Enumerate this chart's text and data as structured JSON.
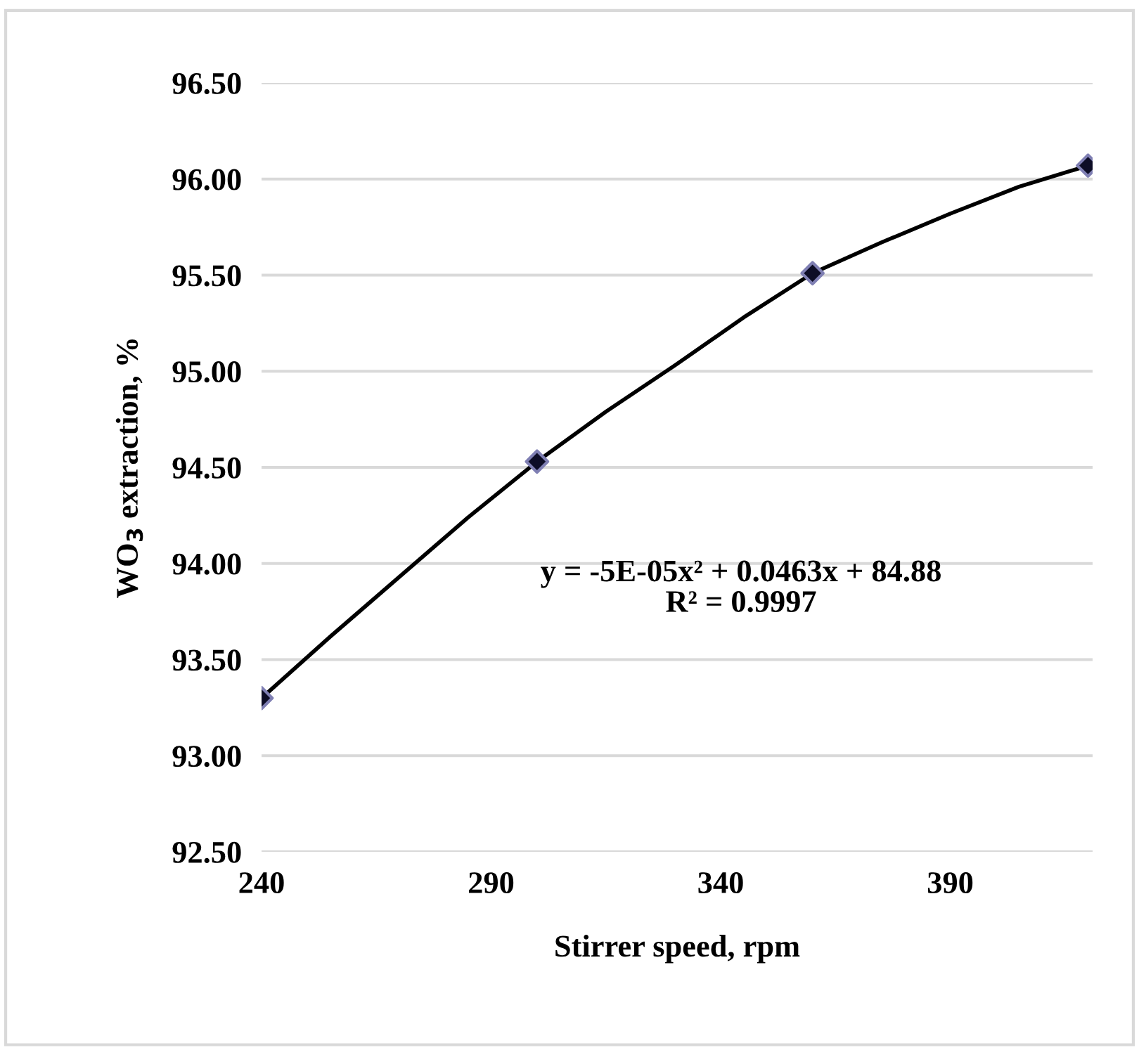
{
  "chart_data": {
    "type": "scatter",
    "xlabel": "Stirrer speed, rpm",
    "ylabel": "WO$_{3}$ extraction, %",
    "xlim": [
      240,
      421
    ],
    "xticks": [
      240,
      290,
      340,
      390
    ],
    "ylim": [
      92.5,
      96.5
    ],
    "yticks": [
      {
        "value": 92.5,
        "label": "92.50"
      },
      {
        "value": 93.0,
        "label": "93.00"
      },
      {
        "value": 93.5,
        "label": "93.50"
      },
      {
        "value": 94.0,
        "label": "94.00"
      },
      {
        "value": 94.5,
        "label": "94.50"
      },
      {
        "value": 95.0,
        "label": "95.00"
      },
      {
        "value": 95.5,
        "label": "95.50"
      },
      {
        "value": 96.0,
        "label": "96.00"
      },
      {
        "value": 96.5,
        "label": "96.50"
      }
    ],
    "grid": "y",
    "legend": false,
    "marker": "diamond",
    "series": [
      {
        "type": "line",
        "color": "#000000",
        "marker": "none",
        "line_style": "solid",
        "x": [
          240,
          255,
          270,
          285,
          300,
          315,
          330,
          345,
          360,
          375,
          390,
          405,
          420
        ],
        "values": [
          93.3,
          93.62,
          93.93,
          94.24,
          94.53,
          94.79,
          95.03,
          95.28,
          95.51,
          95.67,
          95.82,
          95.96,
          96.07
        ]
      },
      {
        "color": "#0d0d26",
        "x": [
          240,
          300,
          360,
          420
        ],
        "values": [
          93.3,
          94.53,
          95.51,
          96.07
        ]
      }
    ],
    "annotations": [
      "y = -5E-05x² + 0.0463x + 84.88\nR² = 0.9997"
    ]
  }
}
